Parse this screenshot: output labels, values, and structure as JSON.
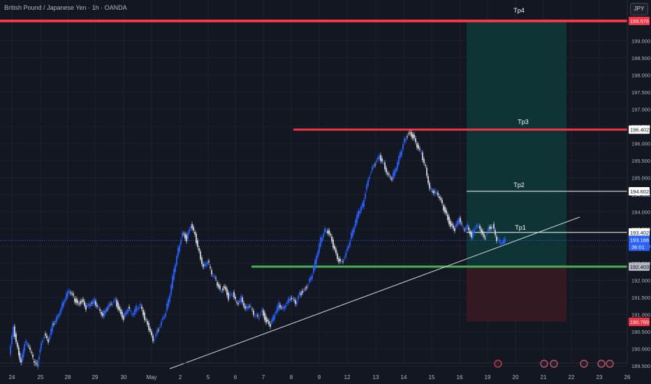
{
  "header": {
    "title": "British Pound / Japanese Yen · 1h · OANDA",
    "currency": "JPY"
  },
  "chart_data": {
    "type": "line",
    "title": "British Pound / Japanese Yen · 1h · OANDA",
    "ylim": [
      189.3,
      199.85
    ],
    "y_ticks": [
      {
        "v": 199.0,
        "label": "199.000"
      },
      {
        "v": 198.5,
        "label": "198.500"
      },
      {
        "v": 198.0,
        "label": "198.000"
      },
      {
        "v": 197.5,
        "label": "197.500"
      },
      {
        "v": 197.0,
        "label": "197.000"
      },
      {
        "v": 196.5,
        "label": "196.500"
      },
      {
        "v": 196.0,
        "label": "196.000"
      },
      {
        "v": 195.5,
        "label": "195.500"
      },
      {
        "v": 195.0,
        "label": "195.000"
      },
      {
        "v": 194.5,
        "label": "194.500"
      },
      {
        "v": 194.0,
        "label": "194.000"
      },
      {
        "v": 193.5,
        "label": "193.500"
      },
      {
        "v": 193.0,
        "label": "193.000"
      },
      {
        "v": 192.5,
        "label": "192.500"
      },
      {
        "v": 192.0,
        "label": "192.000"
      },
      {
        "v": 191.5,
        "label": "191.500"
      },
      {
        "v": 191.0,
        "label": "191.000"
      },
      {
        "v": 190.5,
        "label": "190.500"
      },
      {
        "v": 190.0,
        "label": "190.000"
      },
      {
        "v": 189.5,
        "label": "189.500"
      }
    ],
    "x_ticks": [
      "24",
      "25",
      "28",
      "29",
      "30",
      "May",
      "2",
      "5",
      "6",
      "7",
      "8",
      "9",
      "12",
      "13",
      "14",
      "15",
      "16",
      "19",
      "20",
      "21",
      "22",
      "23",
      "26"
    ],
    "series": [
      {
        "values": [
          [
            0,
            189.8
          ],
          [
            6,
            190.6
          ],
          [
            12,
            190.0
          ],
          [
            17,
            189.6
          ],
          [
            22,
            190.2
          ],
          [
            28,
            190.1
          ],
          [
            34,
            189.7
          ],
          [
            40,
            189.5
          ],
          [
            44,
            190.0
          ],
          [
            50,
            190.4
          ],
          [
            56,
            190.2
          ],
          [
            62,
            190.7
          ],
          [
            68,
            190.9
          ],
          [
            74,
            191.2
          ],
          [
            80,
            191.5
          ],
          [
            86,
            191.7
          ],
          [
            92,
            191.5
          ],
          [
            98,
            191.3
          ],
          [
            104,
            191.4
          ],
          [
            110,
            191.2
          ],
          [
            116,
            191.3
          ],
          [
            122,
            191.4
          ],
          [
            128,
            191.2
          ],
          [
            134,
            191.0
          ],
          [
            140,
            191.2
          ],
          [
            146,
            191.3
          ],
          [
            152,
            191.4
          ],
          [
            158,
            191.1
          ],
          [
            164,
            190.9
          ],
          [
            170,
            191.2
          ],
          [
            176,
            191.0
          ],
          [
            182,
            191.2
          ],
          [
            188,
            191.3
          ],
          [
            194,
            190.9
          ],
          [
            200,
            190.6
          ],
          [
            206,
            190.2
          ],
          [
            212,
            190.5
          ],
          [
            218,
            190.8
          ],
          [
            224,
            191.1
          ],
          [
            230,
            191.6
          ],
          [
            236,
            192.3
          ],
          [
            242,
            192.9
          ],
          [
            248,
            193.4
          ],
          [
            254,
            193.2
          ],
          [
            260,
            193.6
          ],
          [
            266,
            193.3
          ],
          [
            272,
            192.8
          ],
          [
            278,
            192.4
          ],
          [
            284,
            192.6
          ],
          [
            290,
            192.2
          ],
          [
            296,
            192.0
          ],
          [
            302,
            191.7
          ],
          [
            308,
            191.8
          ],
          [
            314,
            191.5
          ],
          [
            320,
            191.6
          ],
          [
            326,
            191.3
          ],
          [
            332,
            191.5
          ],
          [
            338,
            191.2
          ],
          [
            344,
            191.3
          ],
          [
            350,
            191.0
          ],
          [
            356,
            190.9
          ],
          [
            362,
            191.1
          ],
          [
            368,
            190.8
          ],
          [
            374,
            190.7
          ],
          [
            380,
            191.0
          ],
          [
            386,
            191.3
          ],
          [
            392,
            191.2
          ],
          [
            398,
            191.4
          ],
          [
            404,
            191.5
          ],
          [
            410,
            191.3
          ],
          [
            416,
            191.6
          ],
          [
            422,
            191.7
          ],
          [
            428,
            191.9
          ],
          [
            434,
            192.2
          ],
          [
            440,
            192.7
          ],
          [
            446,
            193.2
          ],
          [
            452,
            193.5
          ],
          [
            458,
            193.4
          ],
          [
            464,
            193.0
          ],
          [
            470,
            192.6
          ],
          [
            476,
            192.5
          ],
          [
            482,
            192.8
          ],
          [
            488,
            193.2
          ],
          [
            494,
            193.6
          ],
          [
            500,
            194.0
          ],
          [
            506,
            194.2
          ],
          [
            512,
            194.8
          ],
          [
            518,
            195.2
          ],
          [
            524,
            195.4
          ],
          [
            530,
            195.6
          ],
          [
            536,
            195.4
          ],
          [
            542,
            195.1
          ],
          [
            548,
            195.0
          ],
          [
            554,
            195.3
          ],
          [
            560,
            195.7
          ],
          [
            566,
            196.1
          ],
          [
            572,
            196.3
          ],
          [
            578,
            196.2
          ],
          [
            584,
            195.9
          ],
          [
            590,
            195.7
          ],
          [
            596,
            195.3
          ],
          [
            602,
            194.7
          ],
          [
            608,
            194.6
          ],
          [
            614,
            194.5
          ],
          [
            620,
            194.2
          ],
          [
            626,
            193.9
          ],
          [
            632,
            193.6
          ],
          [
            638,
            193.5
          ],
          [
            644,
            193.8
          ],
          [
            650,
            193.5
          ],
          [
            656,
            193.6
          ],
          [
            662,
            193.3
          ],
          [
            668,
            193.6
          ],
          [
            674,
            193.5
          ],
          [
            680,
            193.2
          ],
          [
            686,
            193.5
          ],
          [
            692,
            193.6
          ],
          [
            698,
            193.2
          ],
          [
            704,
            193.1
          ],
          [
            710,
            193.17
          ]
        ]
      }
    ],
    "horizontal_levels": [
      {
        "label": "Tp4",
        "price": "199.576",
        "value": 199.576,
        "color": "#f23645"
      },
      {
        "label": "Tp3",
        "price": "196.402",
        "value": 196.402,
        "color": "#f23645"
      },
      {
        "label": "Tp2",
        "price": "194.602",
        "value": 194.602,
        "color": "#ffffff"
      },
      {
        "label": "Tp1",
        "price": "193.402",
        "value": 193.402,
        "color": "#ffffff"
      },
      {
        "label": "",
        "price": "192.403",
        "value": 192.403,
        "color": "#4caf50"
      }
    ],
    "stop_level": {
      "price": "190.789",
      "value": 190.789,
      "color": "#f23645"
    },
    "current_price": {
      "price": "193.166",
      "countdown": "36:01",
      "value": 193.166,
      "color": "#2962ff"
    },
    "trendline": {
      "from": [
        243,
        189.42
      ],
      "to": [
        830,
        193.85
      ]
    },
    "position_box": {
      "entry": 192.403,
      "target": 199.576,
      "stop": 190.789
    },
    "grid": true
  }
}
